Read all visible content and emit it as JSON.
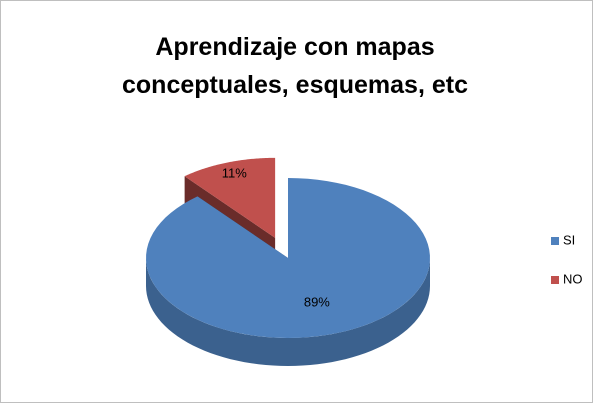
{
  "chart_data": {
    "type": "pie",
    "title": "Aprendizaje con mapas conceptuales, esquemas, etc",
    "categories": [
      "SI",
      "NO"
    ],
    "values": [
      89,
      11
    ],
    "value_labels": [
      "89%",
      "11%"
    ],
    "colors": [
      "#4f81bd",
      "#c0504d"
    ],
    "legend": "right"
  }
}
